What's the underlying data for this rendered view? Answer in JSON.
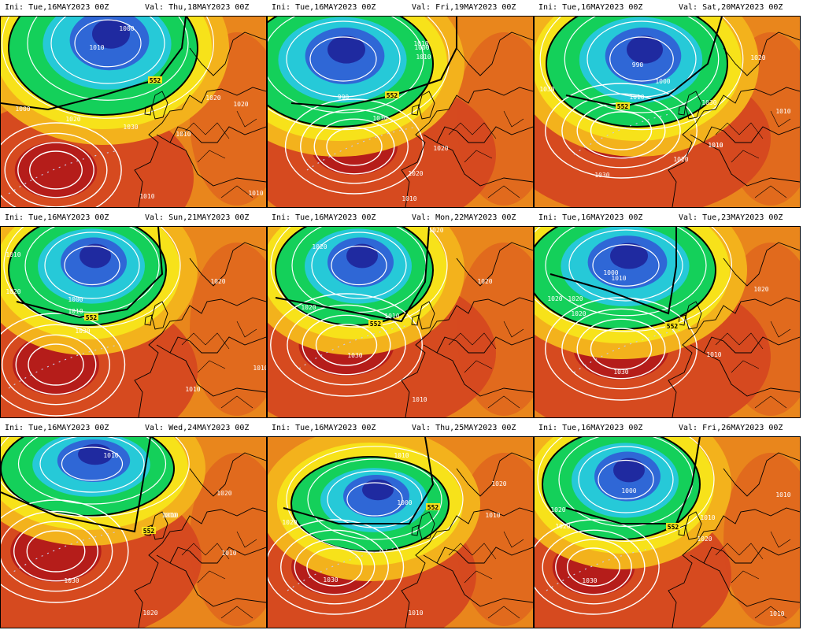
{
  "colors": {
    "deep_red": "#b51d1a",
    "red": "#d64a1f",
    "orange": "#e9861c",
    "amber": "#f3b21c",
    "yellow": "#f7e21a",
    "green": "#14d05a",
    "cyan": "#26c9d8",
    "blue": "#2f67d6",
    "navy": "#1f2aa0",
    "isobar": "#ffffff",
    "coast": "#000000"
  },
  "panels": [
    {
      "ini": "Ini: Tue,16MAY2023 00Z",
      "val": "Val: Thu,18MAY2023 00Z",
      "isobar_labels": [
        "1000",
        "1010",
        "552",
        "1000",
        "1020",
        "1030",
        "1020",
        "1010",
        "1020",
        "1010",
        "1010"
      ]
    },
    {
      "ini": "Ini: Tue,16MAY2023 00Z",
      "val": "Val: Fri,19MAY2023 00Z",
      "isobar_labels": [
        "1000",
        "1010",
        "990",
        "552",
        "1010",
        "1030",
        "1020",
        "1020",
        "1010"
      ]
    },
    {
      "ini": "Ini: Tue,16MAY2023 00Z",
      "val": "Val: Sat,20MAY2023 00Z",
      "isobar_labels": [
        "990",
        "1000",
        "1010",
        "552",
        "1030",
        "1030",
        "1020",
        "1010",
        "1010",
        "1020",
        "1030",
        "1010"
      ]
    },
    {
      "ini": "Ini: Tue,16MAY2023 00Z",
      "val": "Val: Sun,21MAY2023 00Z",
      "isobar_labels": [
        "1010",
        "1000",
        "1010",
        "552",
        "1020",
        "1030",
        "1020",
        "1010",
        "1010"
      ]
    },
    {
      "ini": "Ini: Tue,16MAY2023 00Z",
      "val": "Val: Mon,22MAY2023 00Z",
      "isobar_labels": [
        "1020",
        "1020",
        "1010",
        "552",
        "1020",
        "1030",
        "1020",
        "1010"
      ]
    },
    {
      "ini": "Ini: Tue,16MAY2023 00Z",
      "val": "Val: Tue,23MAY2023 00Z",
      "isobar_labels": [
        "1000",
        "1010",
        "1020",
        "1020",
        "552",
        "1030",
        "1010",
        "1020",
        "1020"
      ]
    },
    {
      "ini": "Ini: Tue,16MAY2023 00Z",
      "val": "Val: Wed,24MAY2023 00Z",
      "isobar_labels": [
        "1010",
        "1020",
        "1010",
        "552",
        "1030",
        "1010",
        "1010",
        "1020"
      ]
    },
    {
      "ini": "Ini: Tue,16MAY2023 00Z",
      "val": "Val: Thu,25MAY2023 00Z",
      "isobar_labels": [
        "1010",
        "1000",
        "552",
        "1020",
        "1030",
        "1010",
        "1020",
        "1010"
      ]
    },
    {
      "ini": "Ini: Tue,16MAY2023 00Z",
      "val": "Val: Fri,26MAY2023 00Z",
      "isobar_labels": [
        "1000",
        "1020",
        "1020",
        "552",
        "1030",
        "1010",
        "1010",
        "1020",
        "1010"
      ]
    }
  ]
}
